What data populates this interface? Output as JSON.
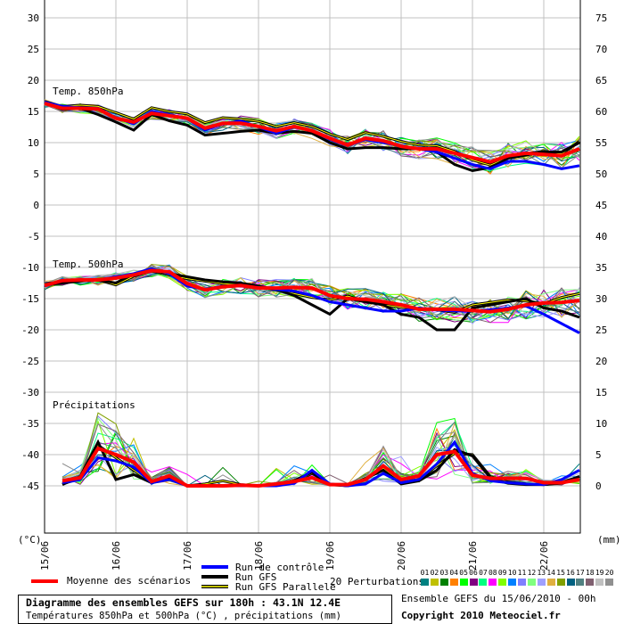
{
  "chart_data": {
    "type": "line",
    "title": "Diagramme des ensembles GEFS sur 180h : 43.1N 12.4E",
    "subtitle": "Températures 850hPa et 500hPa (°C) , précipitations (mm)",
    "run_info": "Ensemble GEFS du 15/06/2010 - 00h",
    "copyright": "Copyright 2010 Meteociel.fr",
    "left_axis": {
      "unit": "(°C)",
      "ylim": [
        -45,
        30
      ],
      "ticks": [
        "30",
        "25",
        "20",
        "15",
        "10",
        "5",
        "0",
        "-5",
        "-10",
        "-15",
        "-20",
        "-25",
        "-30",
        "-35",
        "-40",
        "-45"
      ]
    },
    "right_axis": {
      "unit": "(mm)",
      "ylim": [
        0,
        75
      ],
      "ticks": [
        "75",
        "70",
        "65",
        "60",
        "55",
        "50",
        "45",
        "40",
        "35",
        "30",
        "25",
        "20",
        "15",
        "10",
        "5",
        "0"
      ]
    },
    "x_axis": {
      "hours_range": [
        0,
        180
      ],
      "step_hours": 6,
      "tick_labels": [
        "15/06",
        "16/06",
        "17/06",
        "18/06",
        "19/06",
        "20/06",
        "21/06",
        "22/06"
      ]
    },
    "grid": true,
    "panels": [
      {
        "label": "Temp. 850hPa",
        "axis": "left",
        "start_hour": 0,
        "mean": [
          16.3,
          15.5,
          15.5,
          15.4,
          13.9,
          13.3,
          14.7,
          14.3,
          13.9,
          12.3,
          13.1,
          13.1,
          12.6,
          11.9,
          12.6,
          11.9,
          10.7,
          9.6,
          10.7,
          10.3,
          9.4,
          9.0,
          9.0,
          8.3,
          7.6,
          6.9,
          7.9,
          8.3,
          8.1,
          7.9,
          9.0
        ],
        "control": [
          16.5,
          15.8,
          15.6,
          15.5,
          14.0,
          13.0,
          15.0,
          14.5,
          13.8,
          12.0,
          13.0,
          13.5,
          12.5,
          11.5,
          12.5,
          12.0,
          10.5,
          9.5,
          10.5,
          10.0,
          9.5,
          9.0,
          8.5,
          7.5,
          6.5,
          5.8,
          7.0,
          7.0,
          6.5,
          5.8,
          6.3
        ],
        "gfs": [
          16.5,
          15.3,
          15.5,
          14.5,
          13.3,
          12.0,
          14.5,
          13.5,
          12.8,
          11.2,
          11.5,
          11.8,
          12.0,
          11.5,
          11.8,
          11.5,
          10.0,
          9.0,
          9.2,
          9.2,
          9.0,
          9.0,
          8.5,
          6.5,
          5.5,
          6.0,
          7.5,
          8.0,
          8.5,
          8.5,
          10.0
        ],
        "gfs_parallel": [
          16.6,
          15.8,
          16.0,
          15.8,
          14.8,
          13.8,
          15.6,
          15.0,
          14.6,
          13.2,
          14.0,
          13.8,
          13.4,
          12.6,
          13.2,
          12.6,
          11.4,
          10.5,
          11.6,
          11.0,
          10.2,
          9.6,
          9.5,
          8.6,
          7.2,
          6.4,
          7.6,
          8.2,
          8.6,
          8.2,
          10.2
        ],
        "spread": 1.6
      },
      {
        "label": "Temp. 500hPa",
        "axis": "left",
        "start_hour": 0,
        "mean": [
          -12.9,
          -12.1,
          -12.0,
          -12.0,
          -11.7,
          -11.2,
          -10.5,
          -10.7,
          -12.6,
          -13.6,
          -13.1,
          -12.9,
          -13.3,
          -13.3,
          -13.2,
          -13.3,
          -14.5,
          -15.0,
          -15.1,
          -15.5,
          -16.0,
          -16.7,
          -16.7,
          -16.7,
          -16.9,
          -17.1,
          -16.7,
          -16.0,
          -15.7,
          -15.6,
          -15.3
        ],
        "control": [
          -13.0,
          -12.0,
          -12.0,
          -12.0,
          -11.5,
          -11.0,
          -10.2,
          -11.0,
          -13.0,
          -13.5,
          -13.0,
          -13.0,
          -13.2,
          -13.5,
          -13.8,
          -14.5,
          -15.5,
          -16.0,
          -16.5,
          -17.0,
          -17.0,
          -16.5,
          -16.8,
          -17.0,
          -17.0,
          -16.8,
          -16.5,
          -16.2,
          -17.5,
          -19.0,
          -20.5
        ],
        "gfs": [
          -12.8,
          -12.5,
          -12.2,
          -12.0,
          -12.5,
          -11.0,
          -10.5,
          -11.0,
          -11.5,
          -12.0,
          -12.3,
          -12.5,
          -13.0,
          -13.5,
          -14.5,
          -16.0,
          -17.5,
          -15.0,
          -15.5,
          -16.0,
          -17.5,
          -18.0,
          -20.0,
          -20.0,
          -16.5,
          -16.0,
          -15.5,
          -15.0,
          -16.5,
          -17.0,
          -18.0
        ],
        "gfs_parallel": [
          -12.6,
          -12.3,
          -12.0,
          -12.0,
          -12.8,
          -11.4,
          -10.6,
          -11.2,
          -11.8,
          -12.2,
          -12.6,
          -12.8,
          -13.2,
          -13.6,
          -14.2,
          -14.8,
          -15.2,
          -14.6,
          -15.4,
          -16.0,
          -16.4,
          -16.6,
          -16.8,
          -17.2,
          -16.0,
          -15.6,
          -15.2,
          -15.4,
          -15.8,
          -14.8,
          -14.2
        ],
        "spread": 1.8
      },
      {
        "label": "Précipitations",
        "axis": "right",
        "start_hour": 6,
        "mean": [
          0.8,
          1.3,
          6.0,
          5.0,
          3.8,
          0.7,
          1.6,
          0,
          0,
          0,
          0.1,
          0,
          0.3,
          0.7,
          1.3,
          0.2,
          0.2,
          1.0,
          3.2,
          1.0,
          1.6,
          5.0,
          5.5,
          1.7,
          1.2,
          1.2,
          1.2,
          0.5,
          0.5,
          1.0
        ],
        "control": [
          0.5,
          1.0,
          4.5,
          4.0,
          3.0,
          0.5,
          1.0,
          0,
          0,
          0,
          0,
          0,
          0,
          0.4,
          2.5,
          0.3,
          0,
          0.3,
          2.0,
          0.5,
          1.0,
          3.5,
          7.0,
          2.0,
          0.8,
          0.5,
          0.3,
          0.2,
          1.0,
          2.5
        ],
        "gfs": [
          0.2,
          1.5,
          7.0,
          1.0,
          1.8,
          0.5,
          1.2,
          0,
          0,
          0,
          0,
          0,
          0.2,
          0.8,
          2.2,
          0.2,
          0,
          1.2,
          2.5,
          0.3,
          0.8,
          2.5,
          5.8,
          4.8,
          1.3,
          0.4,
          0.2,
          0.2,
          0.5,
          1.5
        ],
        "gfs_parallel": [
          0.3,
          1.2,
          6.5,
          4.5,
          2.5,
          0.5,
          1.3,
          0,
          0.3,
          0.8,
          0.2,
          0,
          0.2,
          0.6,
          2.0,
          0.3,
          0,
          1.0,
          2.8,
          0.5,
          1.0,
          3.2,
          5.2,
          5.0,
          1.5,
          0.6,
          0.3,
          0.2,
          0.4,
          1.2
        ],
        "spread": 1.0
      }
    ],
    "legend": {
      "mean": "Moyenne des scénarios",
      "control": "Run de contrôle",
      "gfs": "Run GFS",
      "gfs_parallel": "Run GFS Parallele",
      "perturbations": "20 Perturbations",
      "perturbation_ids": [
        "01",
        "02",
        "03",
        "04",
        "05",
        "06",
        "07",
        "08",
        "09",
        "10",
        "11",
        "12",
        "13",
        "14",
        "15",
        "16",
        "17",
        "18",
        "19",
        "20"
      ]
    },
    "colors": {
      "mean": "#ff0000",
      "control": "#0000ff",
      "gfs": "#000000",
      "gfs_parallel": "#ffff00",
      "grid": "#c0c0c0",
      "perturbations": [
        "#008080",
        "#c0c000",
        "#008000",
        "#ff8000",
        "#00ff00",
        "#800080",
        "#00ff80",
        "#ff00ff",
        "#80ff00",
        "#0080ff",
        "#8080ff",
        "#80ff80",
        "#a0a0ff",
        "#e0b040",
        "#80a000",
        "#006080",
        "#508080",
        "#806070",
        "#c0c0c0",
        "#909090"
      ]
    }
  }
}
